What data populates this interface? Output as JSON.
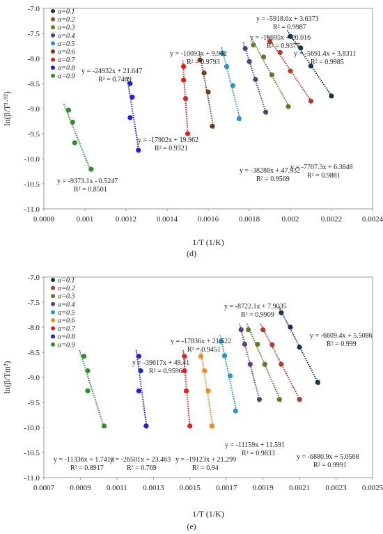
{
  "chart_data": [
    {
      "type": "scatter",
      "caption": "(d)",
      "xlabel": "1/T (1/K)",
      "ylabel": "ln(β/T¹·⁹²)",
      "xlim": [
        0.0008,
        0.0024
      ],
      "ylim": [
        -11.0,
        -7.0
      ],
      "x_ticks": [
        "0.0008",
        "0.001",
        "0.0012",
        "0.0014",
        "0.0016",
        "0.0018",
        "0.002",
        "0.0022",
        "0.0024"
      ],
      "y_ticks": [
        "-7.0",
        "-7.5",
        "-8.0",
        "-8.5",
        "-9.0",
        "-9.5",
        "-10.0",
        "-10.5",
        "-11.0"
      ],
      "grid": false,
      "legend_position": "top-left",
      "series": [
        {
          "name": "α=0.1",
          "color": "#13334f",
          "x": [
            0.002,
            0.00205,
            0.0021,
            0.0022
          ],
          "y": [
            -7.56,
            -7.79,
            -8.15,
            -8.75
          ],
          "eq": "y = -5918.6x + 3.6373",
          "r2": "R² = 0.9987"
        },
        {
          "name": "α=0.2",
          "color": "#b03a2e",
          "x": [
            0.0019,
            0.00195,
            0.002,
            0.0021
          ],
          "y": [
            -7.66,
            -7.88,
            -8.25,
            -8.85
          ],
          "eq": "y = -5691.4x + 3.8311",
          "r2": "R² = 0.9985"
        },
        {
          "name": "α=0.3",
          "color": "#5e7a2b",
          "x": [
            0.00182,
            0.00187,
            0.00191,
            0.00199
          ],
          "y": [
            -7.73,
            -7.97,
            -8.33,
            -8.96
          ],
          "eq": "y = -7707.3x + 6.3848",
          "r2": "R² = 0.9881"
        },
        {
          "name": "α=0.4",
          "color": "#5b3f7a",
          "x": [
            0.00178,
            0.0018,
            0.00183,
            0.00188
          ],
          "y": [
            -7.8,
            -8.06,
            -8.42,
            -9.07
          ],
          "eq": "y = -16695x + 20.016",
          "r2": "R² = 0.9377"
        },
        {
          "name": "α=0.5",
          "color": "#2e91c4",
          "x": [
            0.00167,
            0.00169,
            0.00172,
            0.00175
          ],
          "y": [
            -7.9,
            -8.16,
            -8.54,
            -9.2
          ],
          "eq": "y = -38288x + 47.932",
          "r2": "R² = 0.9569"
        },
        {
          "name": "α=0.6",
          "color": "#6b3b22",
          "x": [
            0.00156,
            0.00158,
            0.0016,
            0.00162
          ],
          "y": [
            -8.03,
            -8.29,
            -8.67,
            -9.35
          ],
          "eq": "y = -10093x + 9.982",
          "r2": "R² = 0.9793"
        },
        {
          "name": "α=0.7",
          "color": "#e01f1f",
          "x": [
            0.00148,
            0.00148,
            0.00149,
            0.0015
          ],
          "y": [
            -8.16,
            -8.43,
            -8.8,
            -9.5
          ],
          "eq": "y = -17902x + 19.962",
          "r2": "R² = 0.9321"
        },
        {
          "name": "α=0.8",
          "color": "#1f1fd6",
          "x": [
            0.00122,
            0.00123,
            0.00122,
            0.00126
          ],
          "y": [
            -8.5,
            -8.77,
            -9.18,
            -9.83
          ],
          "eq": "y = -24932x + 21.647",
          "r2": "R² = 0.7469"
        },
        {
          "name": "α=0.9",
          "color": "#2f8f2f",
          "x": [
            0.00092,
            0.00094,
            0.00095,
            0.00103
          ],
          "y": [
            -9.03,
            -9.27,
            -9.68,
            -10.21
          ],
          "eq": "y = -9373.1x - 0.5247",
          "r2": "R² = 0.8501"
        }
      ]
    },
    {
      "type": "scatter",
      "caption": "(e)",
      "xlabel": "1/T (1/K)",
      "ylabel": "ln(β/Tm²)",
      "xlim": [
        0.0007,
        0.0025
      ],
      "ylim": [
        -11.0,
        -7.0
      ],
      "x_ticks": [
        "0.0007",
        "0.0009",
        "0.0011",
        "0.0013",
        "0.0015",
        "0.0017",
        "0.0019",
        "0.0021",
        "0.0023",
        "0.0025"
      ],
      "y_ticks": [
        "-7.0",
        "-7.5",
        "-8.0",
        "-8.5",
        "-9.0",
        "-9.5",
        "-10.0",
        "-10.5",
        "-11.0"
      ],
      "grid": false,
      "legend_position": "top-left",
      "series": [
        {
          "name": "α=0.1",
          "color": "#13334f",
          "x": [
            0.002,
            0.00205,
            0.0021,
            0.0022
          ],
          "y": [
            -7.71,
            -8.0,
            -8.4,
            -9.1
          ],
          "eq": "y = -8722.1x + 7.9035",
          "r2": "R² = 0.9909"
        },
        {
          "name": "α=0.2",
          "color": "#b03a2e",
          "x": [
            0.0019,
            0.00195,
            0.002,
            0.0021
          ],
          "y": [
            -8.05,
            -8.35,
            -8.74,
            -9.44
          ],
          "eq": "y = -6609.4x + 5.5086",
          "r2": "R² = 0.999"
        },
        {
          "name": "α=0.3",
          "color": "#5e7a2b",
          "x": [
            0.00182,
            0.00187,
            0.00191,
            0.00199
          ],
          "y": [
            -8.05,
            -8.34,
            -8.74,
            -9.44
          ],
          "eq": "y = -6880.9x + 5.0568",
          "r2": "R² = 0.9991"
        },
        {
          "name": "α=0.4",
          "color": "#5b3f7a",
          "x": [
            0.00178,
            0.0018,
            0.00183,
            0.00188
          ],
          "y": [
            -8.05,
            -8.34,
            -8.74,
            -9.44
          ],
          "eq": "y = -11159x + 11.591",
          "r2": "R² = 0.9833"
        },
        {
          "name": "α=0.5",
          "color": "#2e91c4",
          "x": [
            0.00167,
            0.00169,
            0.00172,
            0.00175
          ],
          "y": [
            -8.28,
            -8.57,
            -8.97,
            -9.67
          ],
          "eq": "y = -17836x + 21.522",
          "r2": "R² = 0.9451"
        },
        {
          "name": "α=0.6",
          "color": "#f08a1c",
          "x": [
            0.00156,
            0.00158,
            0.0016,
            0.00162
          ],
          "y": [
            -8.58,
            -8.87,
            -9.27,
            -9.97
          ],
          "eq": "y = -19123x + 21.299",
          "r2": "R² = 0.94"
        },
        {
          "name": "α=0.7",
          "color": "#e01f1f",
          "x": [
            0.00147,
            0.00147,
            0.00148,
            0.0015
          ],
          "y": [
            -8.58,
            -8.87,
            -9.27,
            -9.97
          ],
          "eq": "y = -39617x + 49.41",
          "r2": "R² = 0.9596"
        },
        {
          "name": "α=0.8",
          "color": "#1f1fd6",
          "x": [
            0.00122,
            0.00123,
            0.00122,
            0.00126
          ],
          "y": [
            -8.58,
            -8.87,
            -9.27,
            -9.97
          ],
          "eq": "y = -26501x + 23.463",
          "r2": "R² = 0.769"
        },
        {
          "name": "α=0.9",
          "color": "#2f8f2f",
          "x": [
            0.00092,
            0.00094,
            0.00094,
            0.00103
          ],
          "y": [
            -8.58,
            -8.87,
            -9.27,
            -9.97
          ],
          "eq": "y = -11336x + 1.7413",
          "r2": "R² = 0.8917"
        }
      ]
    }
  ]
}
